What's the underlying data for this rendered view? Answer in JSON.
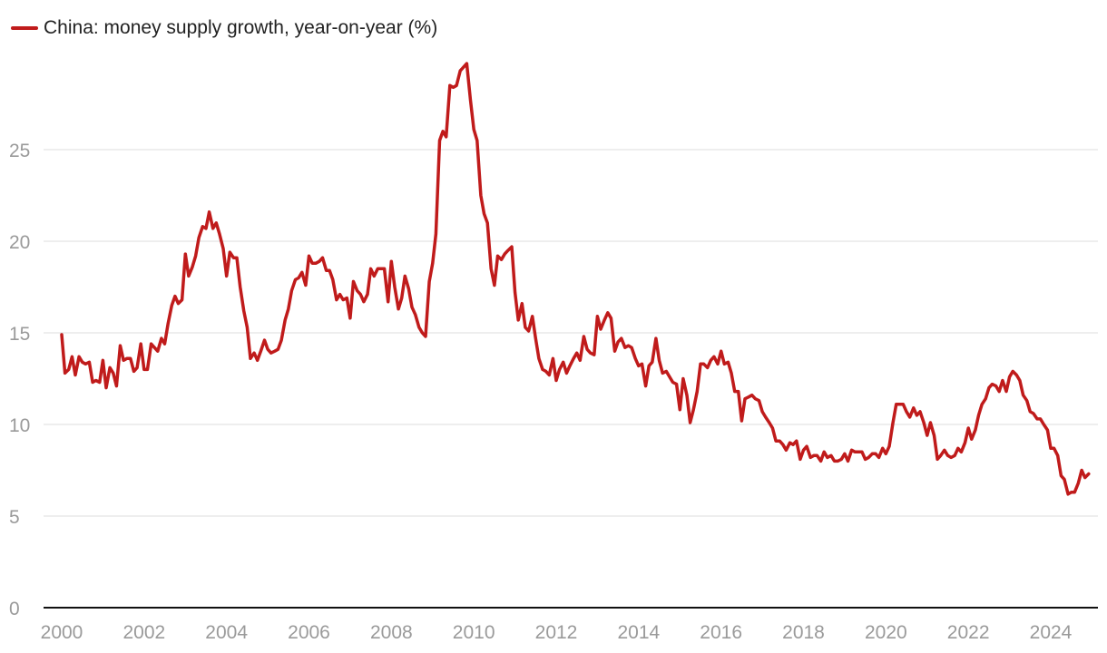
{
  "chart_data": {
    "type": "line",
    "title": "",
    "xlabel": "",
    "ylabel": "",
    "legend_position": "top-left",
    "grid": "horizontal",
    "xlim": [
      2000,
      2025
    ],
    "ylim": [
      0,
      30
    ],
    "x_ticks": [
      2000,
      2002,
      2004,
      2006,
      2008,
      2010,
      2012,
      2014,
      2016,
      2018,
      2020,
      2022,
      2024
    ],
    "y_ticks": [
      0,
      5,
      10,
      15,
      20,
      25
    ],
    "series": [
      {
        "name": "China: money supply growth, year-on-year (%)",
        "color": "#c01b1b",
        "x": [
          2000.0,
          2000.08,
          2000.17,
          2000.25,
          2000.33,
          2000.42,
          2000.5,
          2000.58,
          2000.67,
          2000.75,
          2000.83,
          2000.92,
          2001.0,
          2001.08,
          2001.17,
          2001.25,
          2001.33,
          2001.42,
          2001.5,
          2001.58,
          2001.67,
          2001.75,
          2001.83,
          2001.92,
          2002.0,
          2002.08,
          2002.17,
          2002.25,
          2002.33,
          2002.42,
          2002.5,
          2002.58,
          2002.67,
          2002.75,
          2002.83,
          2002.92,
          2003.0,
          2003.08,
          2003.17,
          2003.25,
          2003.33,
          2003.42,
          2003.5,
          2003.58,
          2003.67,
          2003.75,
          2003.83,
          2003.92,
          2004.0,
          2004.08,
          2004.17,
          2004.25,
          2004.33,
          2004.42,
          2004.5,
          2004.58,
          2004.67,
          2004.75,
          2004.83,
          2004.92,
          2005.0,
          2005.08,
          2005.17,
          2005.25,
          2005.33,
          2005.42,
          2005.5,
          2005.58,
          2005.67,
          2005.75,
          2005.83,
          2005.92,
          2006.0,
          2006.08,
          2006.17,
          2006.25,
          2006.33,
          2006.42,
          2006.5,
          2006.58,
          2006.67,
          2006.75,
          2006.83,
          2006.92,
          2007.0,
          2007.08,
          2007.17,
          2007.25,
          2007.33,
          2007.42,
          2007.5,
          2007.58,
          2007.67,
          2007.75,
          2007.83,
          2007.92,
          2008.0,
          2008.08,
          2008.17,
          2008.25,
          2008.33,
          2008.42,
          2008.5,
          2008.58,
          2008.67,
          2008.75,
          2008.83,
          2008.92,
          2009.0,
          2009.08,
          2009.17,
          2009.25,
          2009.33,
          2009.42,
          2009.5,
          2009.58,
          2009.67,
          2009.75,
          2009.83,
          2009.92,
          2010.0,
          2010.08,
          2010.17,
          2010.25,
          2010.33,
          2010.42,
          2010.5,
          2010.58,
          2010.67,
          2010.75,
          2010.83,
          2010.92,
          2011.0,
          2011.08,
          2011.17,
          2011.25,
          2011.33,
          2011.42,
          2011.5,
          2011.58,
          2011.67,
          2011.75,
          2011.83,
          2011.92,
          2012.0,
          2012.08,
          2012.17,
          2012.25,
          2012.33,
          2012.42,
          2012.5,
          2012.58,
          2012.67,
          2012.75,
          2012.83,
          2012.92,
          2013.0,
          2013.08,
          2013.17,
          2013.25,
          2013.33,
          2013.42,
          2013.5,
          2013.58,
          2013.67,
          2013.75,
          2013.83,
          2013.92,
          2014.0,
          2014.08,
          2014.17,
          2014.25,
          2014.33,
          2014.42,
          2014.5,
          2014.58,
          2014.67,
          2014.75,
          2014.83,
          2014.92,
          2015.0,
          2015.08,
          2015.17,
          2015.25,
          2015.33,
          2015.42,
          2015.5,
          2015.58,
          2015.67,
          2015.75,
          2015.83,
          2015.92,
          2016.0,
          2016.08,
          2016.17,
          2016.25,
          2016.33,
          2016.42,
          2016.5,
          2016.58,
          2016.67,
          2016.75,
          2016.83,
          2016.92,
          2017.0,
          2017.08,
          2017.17,
          2017.25,
          2017.33,
          2017.42,
          2017.5,
          2017.58,
          2017.67,
          2017.75,
          2017.83,
          2017.92,
          2018.0,
          2018.08,
          2018.17,
          2018.25,
          2018.33,
          2018.42,
          2018.5,
          2018.58,
          2018.67,
          2018.75,
          2018.83,
          2018.92,
          2019.0,
          2019.08,
          2019.17,
          2019.25,
          2019.33,
          2019.42,
          2019.5,
          2019.58,
          2019.67,
          2019.75,
          2019.83,
          2019.92,
          2020.0,
          2020.08,
          2020.17,
          2020.25,
          2020.33,
          2020.42,
          2020.5,
          2020.58,
          2020.67,
          2020.75,
          2020.83,
          2020.92,
          2021.0,
          2021.08,
          2021.17,
          2021.25,
          2021.33,
          2021.42,
          2021.5,
          2021.58,
          2021.67,
          2021.75,
          2021.83,
          2021.92,
          2022.0,
          2022.08,
          2022.17,
          2022.25,
          2022.33,
          2022.42,
          2022.5,
          2022.58,
          2022.67,
          2022.75,
          2022.83,
          2022.92,
          2023.0,
          2023.08,
          2023.17,
          2023.25,
          2023.33,
          2023.42,
          2023.5,
          2023.58,
          2023.67,
          2023.75,
          2023.83,
          2023.92,
          2024.0,
          2024.08,
          2024.17,
          2024.25,
          2024.33,
          2024.42,
          2024.5,
          2024.58,
          2024.67,
          2024.75,
          2024.83,
          2024.92
        ],
        "y": [
          14.9,
          12.8,
          13.0,
          13.7,
          12.7,
          13.7,
          13.4,
          13.3,
          13.4,
          12.3,
          12.4,
          12.3,
          13.5,
          12.0,
          13.1,
          12.8,
          12.1,
          14.3,
          13.5,
          13.6,
          13.6,
          12.9,
          13.1,
          14.4,
          13.0,
          13.0,
          14.4,
          14.2,
          14.0,
          14.7,
          14.4,
          15.5,
          16.5,
          17.0,
          16.6,
          16.8,
          19.3,
          18.1,
          18.6,
          19.2,
          20.2,
          20.8,
          20.7,
          21.6,
          20.7,
          21.0,
          20.4,
          19.6,
          18.1,
          19.4,
          19.1,
          19.1,
          17.5,
          16.2,
          15.3,
          13.6,
          13.9,
          13.5,
          14.0,
          14.6,
          14.1,
          13.9,
          14.0,
          14.1,
          14.6,
          15.7,
          16.3,
          17.3,
          17.9,
          18.0,
          18.3,
          17.6,
          19.2,
          18.8,
          18.8,
          18.9,
          19.1,
          18.4,
          18.4,
          17.9,
          16.8,
          17.1,
          16.8,
          16.9,
          15.8,
          17.8,
          17.3,
          17.1,
          16.7,
          17.1,
          18.5,
          18.1,
          18.5,
          18.5,
          18.5,
          16.7,
          18.9,
          17.5,
          16.3,
          16.9,
          18.1,
          17.4,
          16.4,
          16.0,
          15.3,
          15.0,
          14.8,
          17.8,
          18.8,
          20.4,
          25.5,
          26.0,
          25.7,
          28.5,
          28.4,
          28.5,
          29.3,
          29.5,
          29.7,
          27.7,
          26.1,
          25.5,
          22.5,
          21.5,
          21.0,
          18.5,
          17.6,
          19.2,
          19.0,
          19.3,
          19.5,
          19.7,
          17.2,
          15.7,
          16.6,
          15.3,
          15.1,
          15.9,
          14.7,
          13.6,
          13.0,
          12.9,
          12.7,
          13.6,
          12.4,
          13.0,
          13.4,
          12.8,
          13.2,
          13.6,
          13.9,
          13.5,
          14.8,
          14.1,
          13.9,
          13.8,
          15.9,
          15.2,
          15.7,
          16.1,
          15.8,
          14.0,
          14.5,
          14.7,
          14.2,
          14.3,
          14.2,
          13.6,
          13.2,
          13.3,
          12.1,
          13.2,
          13.4,
          14.7,
          13.5,
          12.8,
          12.9,
          12.6,
          12.3,
          12.2,
          10.8,
          12.5,
          11.6,
          10.1,
          10.8,
          11.8,
          13.3,
          13.3,
          13.1,
          13.5,
          13.7,
          13.3,
          14.0,
          13.3,
          13.4,
          12.8,
          11.8,
          11.8,
          10.2,
          11.4,
          11.5,
          11.6,
          11.4,
          11.3,
          10.7,
          10.4,
          10.1,
          9.8,
          9.1,
          9.1,
          8.9,
          8.6,
          9.0,
          8.9,
          9.1,
          8.1,
          8.6,
          8.8,
          8.2,
          8.3,
          8.3,
          8.0,
          8.5,
          8.2,
          8.3,
          8.0,
          8.0,
          8.1,
          8.4,
          8.0,
          8.6,
          8.5,
          8.5,
          8.5,
          8.1,
          8.2,
          8.4,
          8.4,
          8.2,
          8.7,
          8.4,
          8.8,
          10.1,
          11.1,
          11.1,
          11.1,
          10.7,
          10.4,
          10.9,
          10.5,
          10.7,
          10.1,
          9.4,
          10.1,
          9.4,
          8.1,
          8.3,
          8.6,
          8.3,
          8.2,
          8.3,
          8.7,
          8.5,
          9.0,
          9.8,
          9.2,
          9.7,
          10.5,
          11.1,
          11.4,
          12.0,
          12.2,
          12.1,
          11.8,
          12.4,
          11.8,
          12.6,
          12.9,
          12.7,
          12.4,
          11.6,
          11.3,
          10.7,
          10.6,
          10.3,
          10.3,
          10.0,
          9.7,
          8.7,
          8.7,
          8.3,
          7.2,
          7.0,
          6.2,
          6.3,
          6.3,
          6.8,
          7.5,
          7.1,
          7.3
        ]
      }
    ]
  }
}
